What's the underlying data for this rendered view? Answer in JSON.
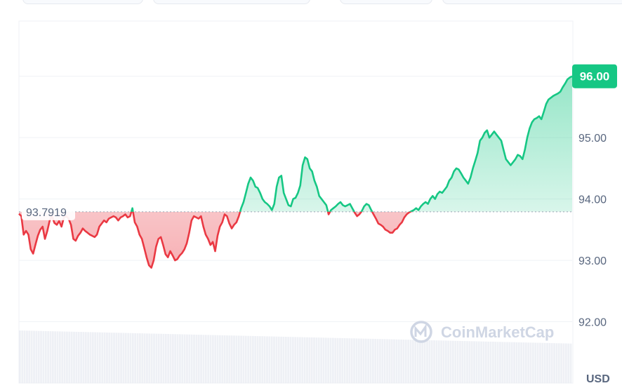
{
  "chart_data": {
    "type": "area",
    "currency": "USD",
    "y_ticks": [
      "92.00",
      "93.00",
      "94.00",
      "95.00",
      "96.00"
    ],
    "ylim": [
      91.0,
      96.9
    ],
    "reference_value": 93.7919,
    "reference_label": "93.7919",
    "current_label": "96.00",
    "current_value": 96.0,
    "colors": {
      "up": "#16c784",
      "down": "#ea3943",
      "current_badge": "#16c784"
    },
    "grid": true,
    "watermark": "CoinMarketCap",
    "values": [
      93.76,
      93.72,
      93.42,
      93.48,
      93.42,
      93.18,
      93.11,
      93.26,
      93.4,
      93.5,
      93.55,
      93.35,
      93.48,
      93.65,
      93.72,
      93.61,
      93.58,
      93.64,
      93.55,
      93.7,
      93.72,
      93.68,
      93.58,
      93.35,
      93.32,
      93.4,
      93.45,
      93.52,
      93.48,
      93.45,
      93.42,
      93.4,
      93.38,
      93.42,
      93.55,
      93.6,
      93.65,
      93.62,
      93.68,
      93.7,
      93.72,
      93.7,
      93.65,
      93.7,
      93.72,
      93.75,
      93.7,
      93.72,
      93.85,
      93.62,
      93.55,
      93.42,
      93.35,
      93.2,
      93.05,
      92.92,
      92.88,
      93.0,
      93.22,
      93.35,
      93.38,
      93.25,
      93.1,
      93.05,
      93.15,
      93.08,
      93.0,
      93.02,
      93.08,
      93.12,
      93.18,
      93.28,
      93.45,
      93.65,
      93.72,
      93.7,
      93.68,
      93.72,
      93.55,
      93.42,
      93.35,
      93.25,
      93.3,
      93.15,
      93.4,
      93.55,
      93.62,
      93.75,
      93.72,
      93.6,
      93.52,
      93.58,
      93.62,
      93.72,
      93.85,
      93.95,
      94.1,
      94.25,
      94.35,
      94.3,
      94.2,
      94.18,
      94.1,
      94.0,
      93.95,
      93.92,
      93.88,
      93.82,
      93.92,
      94.2,
      94.35,
      94.38,
      94.1,
      94.0,
      93.9,
      93.88,
      94.0,
      94.02,
      94.1,
      94.22,
      94.55,
      94.68,
      94.65,
      94.5,
      94.45,
      94.3,
      94.2,
      94.05,
      94.0,
      93.95,
      93.9,
      93.75,
      93.82,
      93.85,
      93.88,
      93.92,
      93.95,
      93.9,
      93.88,
      93.9,
      93.92,
      93.85,
      93.78,
      93.72,
      93.75,
      93.8,
      93.88,
      93.92,
      93.9,
      93.82,
      93.75,
      93.68,
      93.6,
      93.58,
      93.55,
      93.5,
      93.48,
      93.45,
      93.45,
      93.5,
      93.52,
      93.58,
      93.62,
      93.7,
      93.75,
      93.78,
      93.8,
      93.82,
      93.85,
      93.82,
      93.88,
      93.92,
      93.95,
      93.92,
      94.0,
      94.05,
      94.0,
      94.08,
      94.12,
      94.1,
      94.15,
      94.2,
      94.3,
      94.35,
      94.45,
      94.5,
      94.48,
      94.42,
      94.35,
      94.3,
      94.25,
      94.35,
      94.5,
      94.62,
      94.75,
      94.95,
      95.0,
      95.08,
      95.12,
      95.0,
      95.05,
      95.1,
      95.05,
      95.0,
      94.95,
      94.8,
      94.65,
      94.6,
      94.55,
      94.6,
      94.65,
      94.72,
      94.7,
      94.65,
      94.8,
      95.0,
      95.15,
      95.25,
      95.3,
      95.32,
      95.35,
      95.3,
      95.42,
      95.55,
      95.62,
      95.65,
      95.68,
      95.7,
      95.72,
      95.75,
      95.82,
      95.88,
      95.95,
      95.98,
      96.0
    ]
  }
}
